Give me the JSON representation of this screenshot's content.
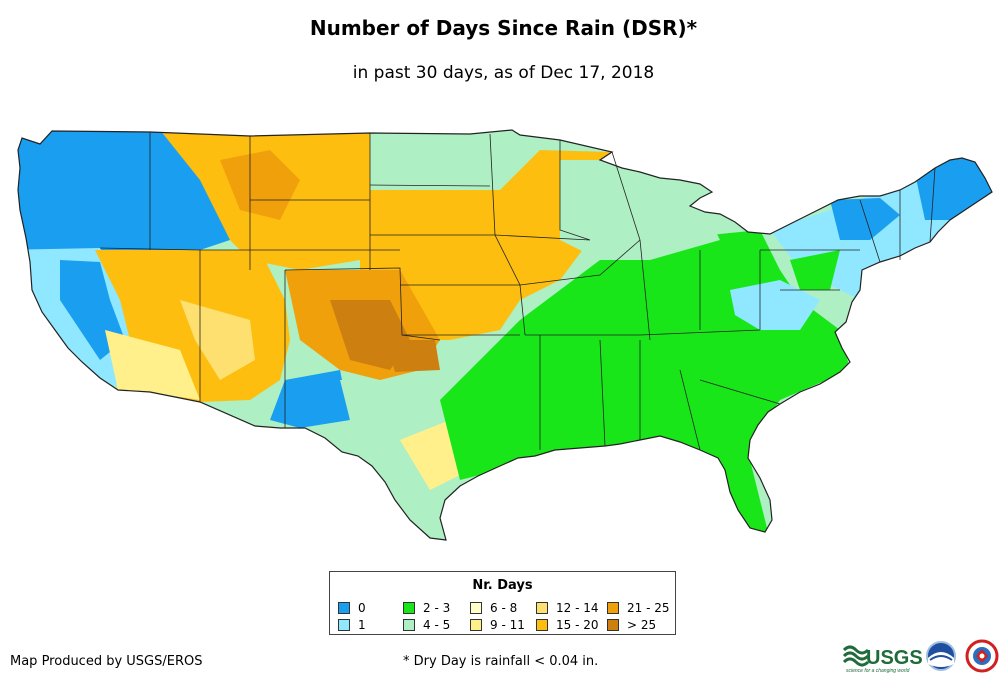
{
  "title": "Number of Days Since Rain (DSR)*",
  "subtitle": "in past 30 days, as of Dec 17, 2018",
  "legend": {
    "title": "Nr. Days",
    "items": [
      {
        "label": "0",
        "color": "#1a9ef0"
      },
      {
        "label": "1",
        "color": "#8fe8ff"
      },
      {
        "label": "2 - 3",
        "color": "#19e619"
      },
      {
        "label": "4 - 5",
        "color": "#aef0c4"
      },
      {
        "label": "6 - 8",
        "color": "#ffffc8"
      },
      {
        "label": "9 - 11",
        "color": "#fff08c"
      },
      {
        "label": "12 - 14",
        "color": "#fde070"
      },
      {
        "label": "15 - 20",
        "color": "#fdbe0f"
      },
      {
        "label": "21 - 25",
        "color": "#f0a00a"
      },
      {
        "label": "> 25",
        "color": "#cd7f0f"
      }
    ]
  },
  "footer": {
    "credit": "Map Produced by USGS/EROS",
    "note": "* Dry Day is rainfall < 0.04 in."
  },
  "logos": {
    "usgs_text": "USGS",
    "usgs_tagline": "science for a changing world"
  }
}
